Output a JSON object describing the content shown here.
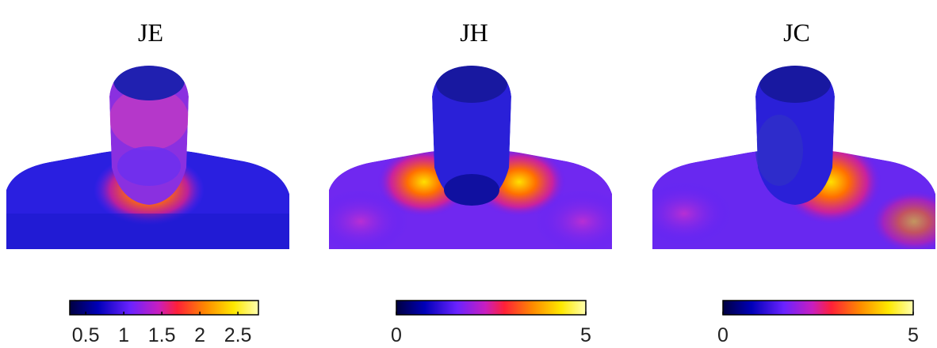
{
  "panels": [
    {
      "title": "JE",
      "colorbar": {
        "lim": [
          0.29,
          2.77
        ],
        "ticks": [
          0.5,
          1,
          1.5,
          2,
          2.5
        ]
      }
    },
    {
      "title": "JH",
      "colorbar": {
        "lim": [
          0,
          5
        ],
        "ticks": [
          0,
          5
        ]
      }
    },
    {
      "title": "JC",
      "colorbar": {
        "lim": [
          0,
          5
        ],
        "ticks": [
          0,
          5
        ]
      }
    }
  ]
}
